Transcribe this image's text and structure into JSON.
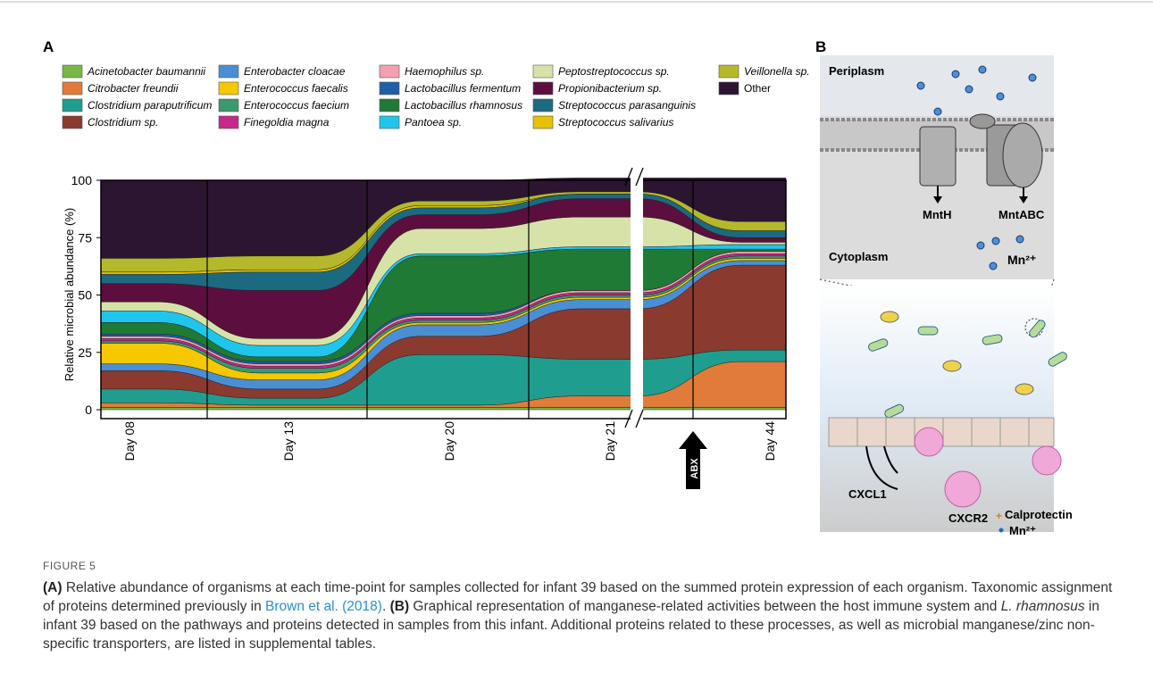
{
  "panel_a": {
    "label": "A"
  },
  "chart_data": {
    "type": "stream",
    "y_label": "Relative microbial abundance (%)",
    "categories": [
      "Day 08",
      "Day 13",
      "Day 20",
      "Day 21",
      "Day 44"
    ],
    "annotation": "ABX",
    "ylim": [
      0,
      100
    ],
    "yticks": [
      0,
      25,
      50,
      75,
      100
    ],
    "series": [
      {
        "name": "Acinetobacter baumannii",
        "color": "#7ab648",
        "values": [
          1,
          1,
          1,
          1,
          1
        ]
      },
      {
        "name": "Citrobacter freundii",
        "color": "#e07b39",
        "values": [
          2,
          1,
          1,
          5,
          20
        ]
      },
      {
        "name": "Clostridium paraputrificum",
        "color": "#1f9e8f",
        "values": [
          6,
          3,
          22,
          16,
          5
        ]
      },
      {
        "name": "Clostridium sp.",
        "color": "#8b3a2f",
        "values": [
          8,
          4,
          8,
          22,
          37
        ]
      },
      {
        "name": "Enterobacter cloacae",
        "color": "#4a8fd4",
        "values": [
          3,
          4,
          5,
          4,
          2
        ]
      },
      {
        "name": "Enterococcus faecalis",
        "color": "#f5c800",
        "values": [
          9,
          3,
          1,
          1,
          1
        ]
      },
      {
        "name": "Enterococcus faecium",
        "color": "#3a9a6e",
        "values": [
          1,
          2,
          1,
          1,
          1
        ]
      },
      {
        "name": "Finegoldia magna",
        "color": "#c7288a",
        "values": [
          1,
          1,
          1,
          1,
          1
        ]
      },
      {
        "name": "Haemophilus sp.",
        "color": "#f4a0b0",
        "values": [
          1,
          1,
          1,
          1,
          1
        ]
      },
      {
        "name": "Lactobacillus fermentum",
        "color": "#1f5fa8",
        "values": [
          1,
          1,
          1,
          0,
          0
        ]
      },
      {
        "name": "Lactobacillus rhamnosus",
        "color": "#1e7a34",
        "values": [
          5,
          2,
          25,
          18,
          1
        ]
      },
      {
        "name": "Pantoea sp.",
        "color": "#1ec6ec",
        "values": [
          5,
          5,
          1,
          1,
          2
        ]
      },
      {
        "name": "Peptostreptococcus sp.",
        "color": "#d7e2a8",
        "values": [
          4,
          3,
          11,
          13,
          1
        ]
      },
      {
        "name": "Propionibacterium sp.",
        "color": "#5c0f3e",
        "values": [
          8,
          21,
          6,
          8,
          2
        ]
      },
      {
        "name": "Streptococcus parasanguinis",
        "color": "#1c6a80",
        "values": [
          4,
          8,
          3,
          2,
          3
        ]
      },
      {
        "name": "Streptococcus salivarius",
        "color": "#e6c200",
        "values": [
          1,
          1,
          1,
          0,
          0
        ]
      },
      {
        "name": "Veillonella sp.",
        "color": "#b5b82a",
        "values": [
          6,
          6,
          2,
          1,
          4
        ]
      },
      {
        "name": "Other",
        "color": "#2b1530",
        "values": [
          34,
          33,
          9,
          6,
          19
        ]
      }
    ]
  },
  "panel_b": {
    "label": "B",
    "periplasm": "Periplasm",
    "cytoplasm": "Cytoplasm",
    "mnth": "MntH",
    "mntabc": "MntABC",
    "mn_top": "Mn²⁺",
    "cxcl1": "CXCL1",
    "cxcr2": "CXCR2",
    "calprotectin": "Calprotectin",
    "mn_legend": "Mn²⁺"
  },
  "caption": {
    "figure": "FIGURE 5",
    "a_label": "(A)",
    "a_text": " Relative abundance of organisms at each time-point for samples collected for infant 39 based on the summed protein expression of each organism. Taxonomic assignment of proteins determined previously in ",
    "citation": "Brown et al. (2018)",
    "a_end": ". ",
    "b_label": "(B)",
    "b_text": " Graphical representation of manganese-related activities between the host immune system and ",
    "b_species": "L. rhamnosus",
    "b_end": " in infant 39 based on the pathways and proteins detected in samples from this infant. Additional proteins related to these processes, as well as microbial manganese/zinc non-specific transporters, are listed in supplemental tables."
  }
}
